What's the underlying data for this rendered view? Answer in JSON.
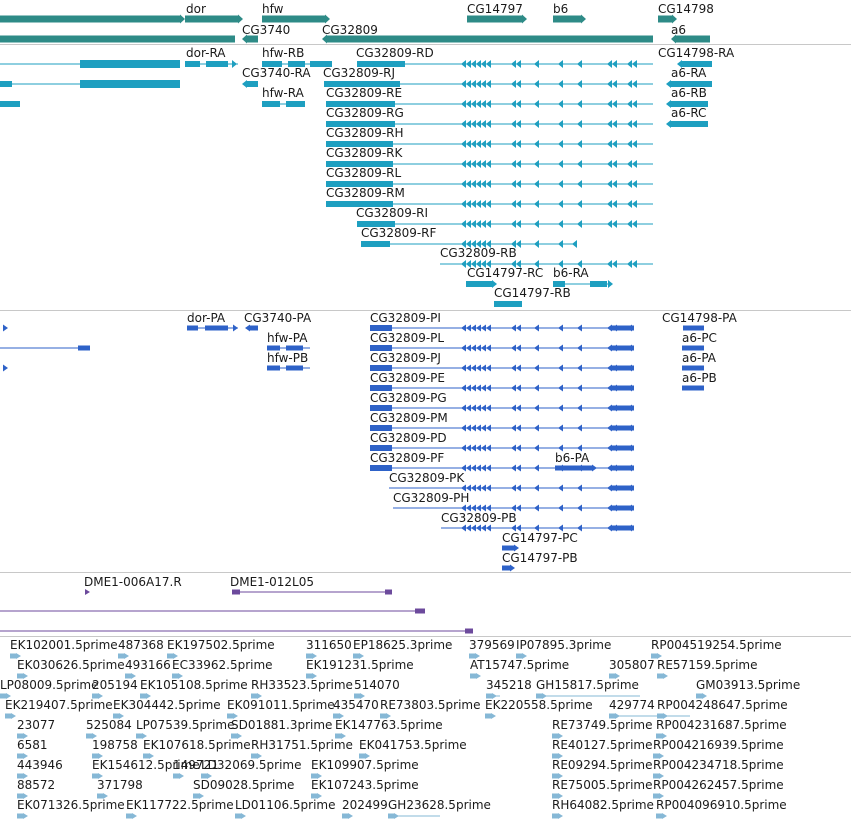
{
  "colors": {
    "gene": "#2e8b87",
    "transcript": "#1e9fc0",
    "protein": "#2e62c8",
    "oligo": "#6c4a9c",
    "est": "#86b8d6",
    "divider": "#c8c8c8",
    "label": "#1a1a1a"
  },
  "tracks": {
    "genes": {
      "labels": [
        "dor",
        "hfw",
        "CG14797",
        "b6",
        "CG14798",
        "CG3740",
        "CG32809",
        "a6"
      ]
    },
    "transcripts": {
      "labels": [
        "dor-RA",
        "hfw-RB",
        "CG32809-RD",
        "CG14798-RA",
        "CG3740-RA",
        "CG32809-RJ",
        "a6-RA",
        "hfw-RA",
        "CG32809-RE",
        "a6-RB",
        "CG32809-RG",
        "a6-RC",
        "CG32809-RH",
        "CG32809-RK",
        "CG32809-RL",
        "CG32809-RM",
        "CG32809-RI",
        "CG32809-RF",
        "CG32809-RB",
        "CG14797-RC",
        "b6-RA",
        "CG14797-RB"
      ]
    },
    "proteins": {
      "labels": [
        "dor-PA",
        "CG3740-PA",
        "CG32809-PI",
        "CG14798-PA",
        "hfw-PA",
        "CG32809-PL",
        "a6-PC",
        "hfw-PB",
        "CG32809-PJ",
        "a6-PA",
        "CG32809-PE",
        "a6-PB",
        "CG32809-PG",
        "CG32809-PM",
        "CG32809-PD",
        "CG32809-PF",
        "b6-PA",
        "CG32809-PK",
        "CG32809-PH",
        "CG32809-PB",
        "CG14797-PC",
        "CG14797-PB"
      ]
    },
    "oligos": {
      "labels": [
        "DME1-006A17.R",
        "DME1-012L05"
      ]
    },
    "ests": {
      "labels": [
        "EK102001.5prime",
        "487368",
        "EK197502.5prime",
        "311650",
        "EP18625.3prime",
        "379569",
        "IP07895.3prime",
        "RP004519254.5prime",
        "EK030626.5prime",
        "493166",
        "EC33962.5prime",
        "EK191231.5prime",
        "AT15747.5prime",
        "305807",
        "RE57159.5prime",
        "LP08009.5prime",
        "205194",
        "EK105108.5prime",
        "RH33523.5prime",
        "514070",
        "345218",
        "GH15817.5prime",
        "GM03913.5prime",
        "EK219407.5prime",
        "EK304442.5prime",
        "EK091011.5prime",
        "435470",
        "RE73803.5prime",
        "EK220558.5prime",
        "429774",
        "RP004248647.5prime",
        "23077",
        "525084",
        "LP07539.5prime",
        "SD01881.3prime",
        "EK147763.5prime",
        "RE73749.5prime",
        "RP004231687.5prime",
        "6581",
        "198758",
        "EK107618.5prime",
        "RH31751.5prime",
        "EK041753.5prime",
        "RE40127.5prime",
        "RP004216939.5prime",
        "443946",
        "EK154612.5prime",
        "149721",
        "LD32069.5prime",
        "EK109907.5prime",
        "RE09294.5prime",
        "RP004234718.5prime",
        "88572",
        "371798",
        "SD09028.5prime",
        "EK107243.5prime",
        "RE75005.5prime",
        "RP004262457.5prime",
        "EK071326.5prime",
        "EK117722.5prime",
        "LD01106.5prime",
        "202499",
        "GH23628.5prime",
        "RH64082.5prime",
        "RP004096910.5prime"
      ]
    }
  }
}
